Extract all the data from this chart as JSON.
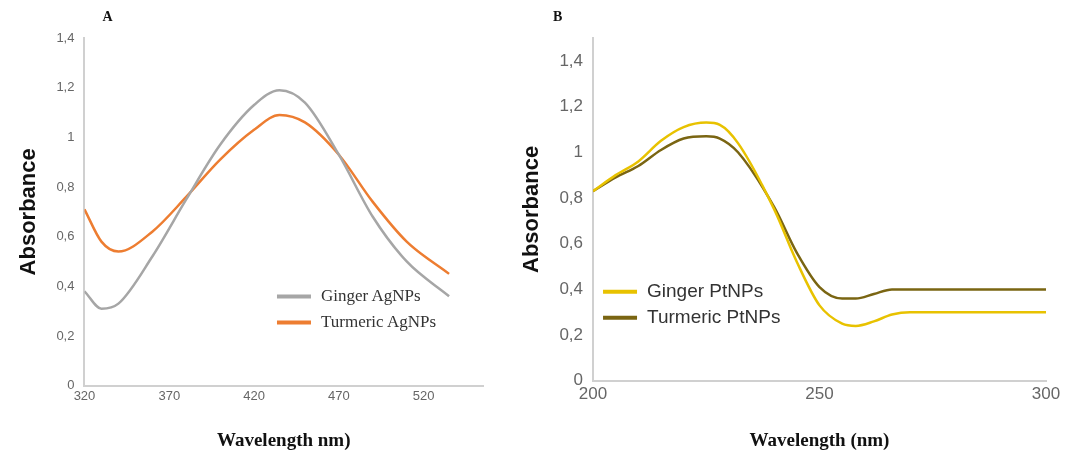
{
  "chart_data": [
    {
      "type": "line",
      "annotations": [
        "A"
      ],
      "xlabel": "Wavelength nm)",
      "ylabel": "Absorbance",
      "xlim": [
        320,
        555
      ],
      "xticks": [
        320,
        370,
        420,
        470,
        520
      ],
      "ylim": [
        0,
        1.4
      ],
      "yticks": [
        {
          "value": 0,
          "label": "0"
        },
        {
          "value": 0.2,
          "label": "0,2"
        },
        {
          "value": 0.4,
          "label": "0,4"
        },
        {
          "value": 0.6,
          "label": "0,6"
        },
        {
          "value": 0.8,
          "label": "0,8"
        },
        {
          "value": 1,
          "label": "1"
        },
        {
          "value": 1.2,
          "label": "1,2"
        },
        {
          "value": 1.4,
          "label": "1,4"
        }
      ],
      "grid": false,
      "legend": "bottom right",
      "marker": "none",
      "line_style": "solid",
      "series": [
        {
          "name": "Ginger AgNPs",
          "color": "#a6a6a6",
          "x": [
            320,
            330,
            340,
            360,
            380,
            400,
            420,
            435,
            450,
            470,
            490,
            510,
            535
          ],
          "values": [
            0.38,
            0.31,
            0.33,
            0.52,
            0.75,
            0.97,
            1.13,
            1.19,
            1.14,
            0.93,
            0.68,
            0.5,
            0.36
          ]
        },
        {
          "name": "Turmeric AgNPs",
          "color": "#ed7d31",
          "x": [
            320,
            330,
            340,
            360,
            380,
            400,
            420,
            435,
            450,
            470,
            490,
            510,
            535
          ],
          "values": [
            0.71,
            0.58,
            0.54,
            0.62,
            0.76,
            0.91,
            1.03,
            1.09,
            1.06,
            0.93,
            0.74,
            0.58,
            0.45
          ]
        }
      ]
    },
    {
      "type": "line",
      "annotations": [
        "B"
      ],
      "xlabel": "Wavelength (nm)",
      "ylabel": "Absorbance",
      "xlim": [
        200,
        300
      ],
      "xticks": [
        200,
        250,
        300
      ],
      "ylim": [
        0,
        1.5
      ],
      "yticks": [
        {
          "value": 0,
          "label": "0"
        },
        {
          "value": 0.2,
          "label": "0,2"
        },
        {
          "value": 0.4,
          "label": "0,4"
        },
        {
          "value": 0.6,
          "label": "0,6"
        },
        {
          "value": 0.8,
          "label": "0,8"
        },
        {
          "value": 1,
          "label": "1"
        },
        {
          "value": 1.2,
          "label": "1,2"
        },
        {
          "value": 1.4,
          "label": "1,4"
        }
      ],
      "grid": false,
      "legend": "bottom left",
      "marker": "none",
      "line_style": "solid",
      "series": [
        {
          "name": "Ginger PtNPs",
          "color": "#e8c200",
          "x": [
            200,
            205,
            210,
            215,
            220,
            225,
            228,
            232,
            240,
            245,
            250,
            255,
            258,
            262,
            266,
            270,
            300
          ],
          "values": [
            0.83,
            0.9,
            0.96,
            1.05,
            1.11,
            1.13,
            1.12,
            1.04,
            0.75,
            0.52,
            0.33,
            0.25,
            0.24,
            0.26,
            0.29,
            0.3,
            0.3
          ]
        },
        {
          "name": "Turmeric PtNPs",
          "color": "#7a6512",
          "x": [
            200,
            205,
            210,
            215,
            220,
            225,
            228,
            232,
            240,
            245,
            250,
            255,
            258,
            262,
            266,
            270,
            300
          ],
          "values": [
            0.83,
            0.89,
            0.94,
            1.01,
            1.06,
            1.07,
            1.06,
            1.0,
            0.76,
            0.56,
            0.41,
            0.36,
            0.36,
            0.38,
            0.4,
            0.4,
            0.4
          ]
        }
      ]
    }
  ]
}
